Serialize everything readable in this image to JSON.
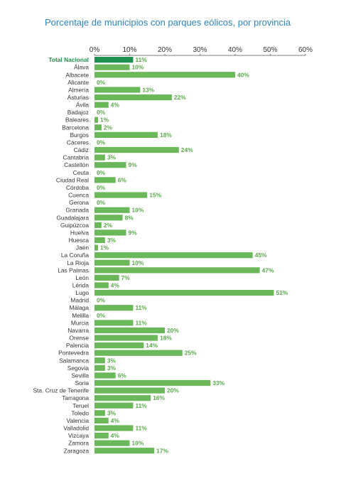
{
  "chart_data": {
    "type": "bar",
    "orientation": "horizontal",
    "title": "Porcentaje de municipios con parques eólicos, por provincia",
    "xlabel": "",
    "ylabel": "",
    "xlim": [
      0,
      60
    ],
    "x_ticks": [
      "0%",
      "10%",
      "20%",
      "30%",
      "40%",
      "50%",
      "60%"
    ],
    "grid": false,
    "value_suffix": "%",
    "colors": {
      "highlight": "#1e8f4e",
      "bar": "#6ab85a",
      "label": "#5aa84a",
      "title": "#2e86c1"
    },
    "highlight_category": "Total Nacional",
    "categories": [
      "Total Nacional",
      "Álava",
      "Albacete",
      "Alicante",
      "Almería",
      "Asturias",
      "Ávila",
      "Badajoz",
      "Baleares",
      "Barcelona",
      "Burgos",
      "Cáceres",
      "Cádiz",
      "Cantabria",
      "Castellón",
      "Ceuta",
      "Ciudad Real",
      "Córdoba",
      "Cuenca",
      "Gerona",
      "Granada",
      "Guadalajara",
      "Guipúzcoa",
      "Huelva",
      "Huesca",
      "Jaén",
      "La Coruña",
      "La Rioja",
      "Las Palmas",
      "León",
      "Lérida",
      "Lugo",
      "Madrid",
      "Málaga",
      "Melilla",
      "Murcia",
      "Navarra",
      "Orense",
      "Palencia",
      "Pontevedra",
      "Salamanca",
      "Segovia",
      "Sevilla",
      "Soria",
      "Sta. Cruz de Tenerife",
      "Tarragona",
      "Teruel",
      "Toledo",
      "Valencia",
      "Valladolid",
      "Vizcaya",
      "Zamora",
      "Zaragoza"
    ],
    "values": [
      11,
      10,
      40,
      0,
      13,
      22,
      4,
      0,
      1,
      2,
      18,
      0,
      24,
      3,
      9,
      0,
      6,
      0,
      15,
      0,
      10,
      8,
      2,
      9,
      3,
      1,
      45,
      10,
      47,
      7,
      4,
      51,
      0,
      11,
      0,
      11,
      20,
      18,
      14,
      25,
      3,
      3,
      6,
      33,
      20,
      16,
      11,
      3,
      4,
      11,
      4,
      10,
      17
    ]
  }
}
